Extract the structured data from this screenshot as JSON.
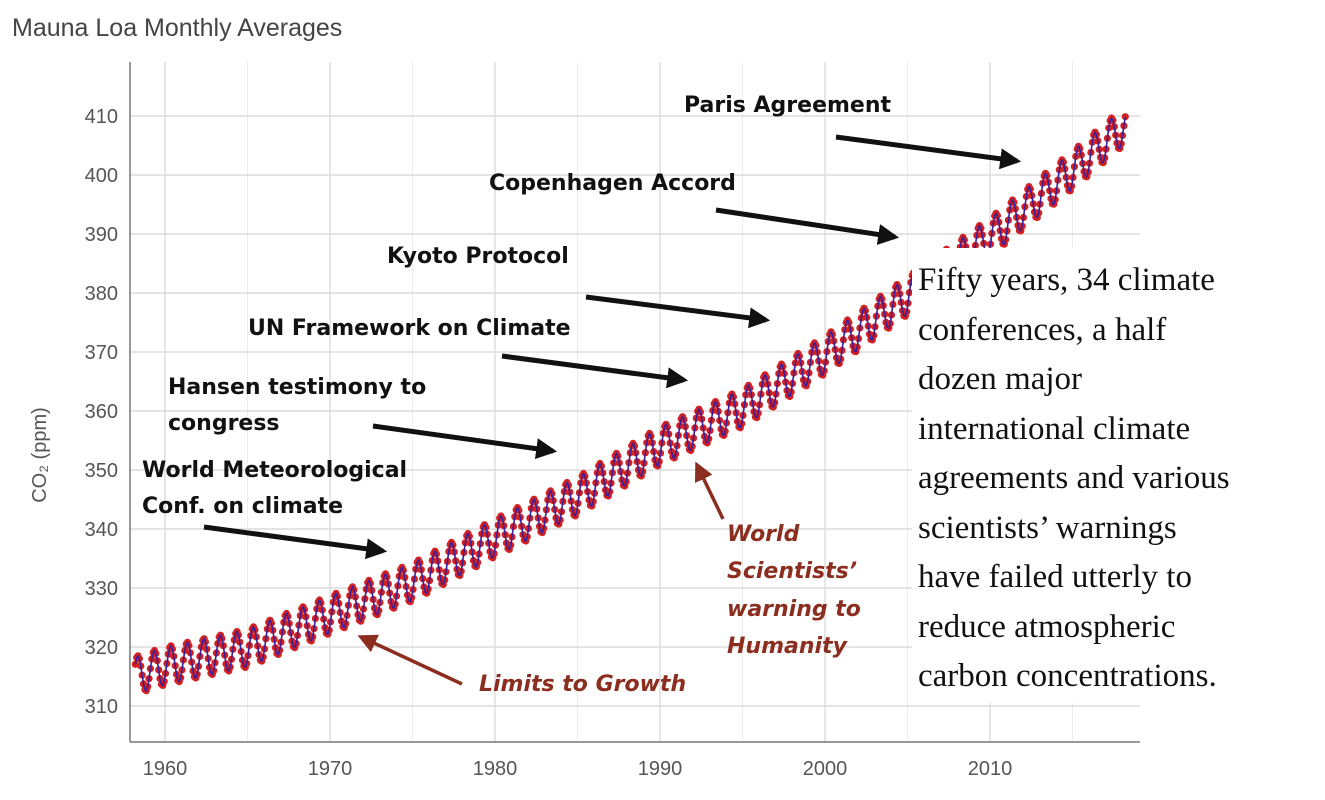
{
  "chart_data": {
    "type": "line",
    "title": "Mauna Loa Monthly Averages",
    "xlabel": "",
    "ylabel": "CO₂ (ppm)",
    "xlim": [
      1958,
      2018.5
    ],
    "ylim": [
      307,
      414
    ],
    "xticks": [
      1960,
      1970,
      1980,
      1990,
      2000,
      2010
    ],
    "yticks": [
      310,
      320,
      330,
      340,
      350,
      360,
      370,
      380,
      390,
      400,
      410
    ],
    "grid": true,
    "seasonal_amplitude_ppm": 3.2,
    "series": [
      {
        "name": "Monthly averages",
        "style": "points",
        "color": "#d42020",
        "x_start": 1958.2,
        "x_end": 2018.2,
        "trend_anchor_years": [
          1958,
          1960,
          1965,
          1970,
          1975,
          1980,
          1985,
          1990,
          1995,
          2000,
          2005,
          2010,
          2015,
          2018
        ],
        "trend_anchor_values": [
          315.0,
          316.8,
          319.8,
          325.5,
          331.0,
          338.5,
          345.6,
          354.1,
          360.5,
          369.5,
          379.5,
          389.5,
          400.8,
          408.0
        ]
      },
      {
        "name": "Trend",
        "style": "line",
        "color": "#3a1f9a"
      }
    ],
    "annotations_black": [
      {
        "id": "paris",
        "lines": [
          "Paris Agreement"
        ]
      },
      {
        "id": "copenhagen",
        "lines": [
          "Copenhagen Accord"
        ]
      },
      {
        "id": "kyoto",
        "lines": [
          "Kyoto Protocol"
        ]
      },
      {
        "id": "unfccc",
        "lines": [
          "UN Framework on Climate"
        ]
      },
      {
        "id": "hansen",
        "lines": [
          "Hansen testimony to",
          "congress"
        ]
      },
      {
        "id": "wmo",
        "lines": [
          "World Meteorological",
          "Conf. on climate"
        ]
      }
    ],
    "annotations_red": [
      {
        "id": "warning",
        "lines": [
          "World",
          "Scientists’",
          "warning to",
          "Humanity"
        ]
      },
      {
        "id": "limits",
        "lines": [
          "Limits to Growth"
        ]
      }
    ]
  },
  "text_box": {
    "lines": [
      "Fifty years, 34 climate",
      "conferences, a half",
      "dozen major",
      "international climate",
      "agreements and various",
      "scientists’ warnings",
      "have failed utterly to",
      "reduce atmospheric",
      "carbon concentrations."
    ]
  },
  "colors": {
    "black_annotation": "#111111",
    "red_annotation": "#8b2e1f",
    "data_points": "#d42020",
    "trend_line": "#3a1f9a",
    "grid": "#dcdcdc"
  }
}
